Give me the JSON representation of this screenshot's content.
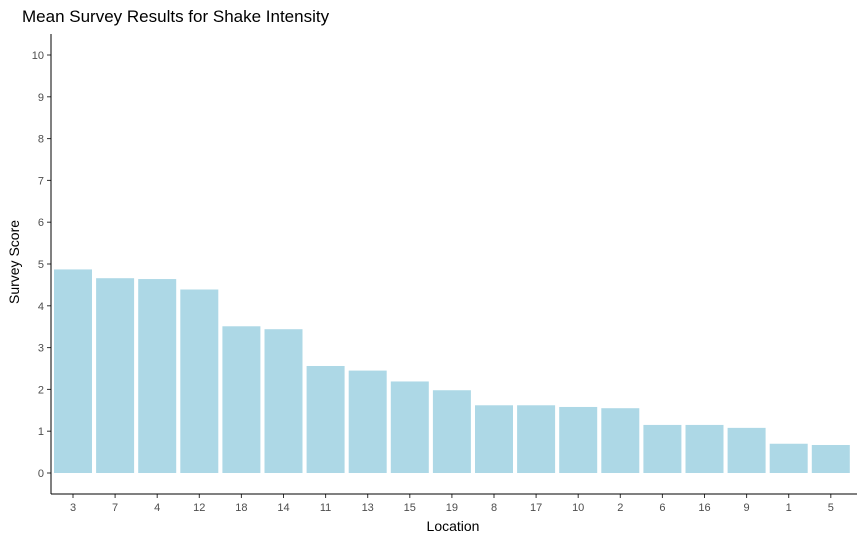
{
  "chart_data": {
    "type": "bar",
    "title": "Mean Survey Results for Shake Intensity",
    "xlabel": "Location",
    "ylabel": "Survey Score",
    "categories": [
      "3",
      "7",
      "4",
      "12",
      "18",
      "14",
      "11",
      "13",
      "15",
      "19",
      "8",
      "17",
      "10",
      "2",
      "6",
      "16",
      "9",
      "1",
      "5"
    ],
    "values": [
      4.87,
      4.66,
      4.64,
      4.39,
      3.51,
      3.44,
      2.56,
      2.45,
      2.19,
      1.98,
      1.62,
      1.62,
      1.58,
      1.55,
      1.15,
      1.15,
      1.08,
      0.7,
      0.67
    ],
    "ylim": [
      0,
      10
    ],
    "yticks": [
      "0",
      "1",
      "2",
      "3",
      "4",
      "5",
      "6",
      "7",
      "8",
      "9",
      "10"
    ],
    "grid": false,
    "colors": {
      "bar": "#add8e6",
      "axis": "#000000",
      "tick_text": "#4d4d4d"
    }
  }
}
